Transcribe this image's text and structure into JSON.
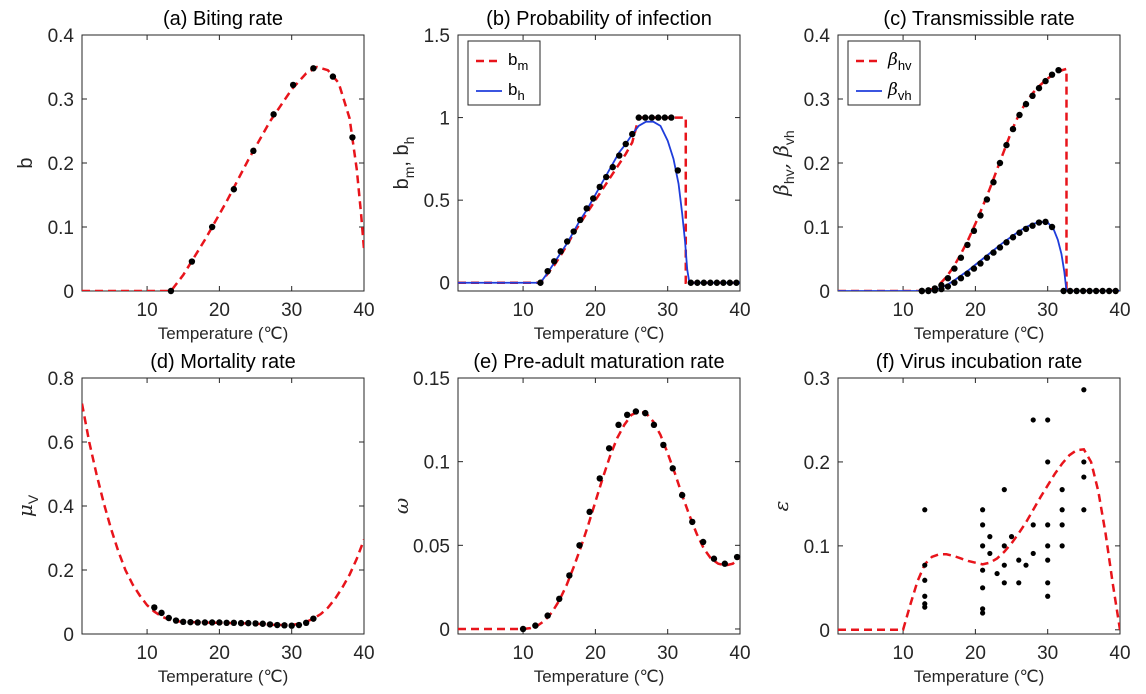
{
  "colors": {
    "red": "#e8141b",
    "blue": "#1f3ddb",
    "points": "#000000",
    "axis": "#262626"
  },
  "chart_data": [
    {
      "id": "a",
      "type": "line",
      "title": "(a) Biting rate",
      "xlabel": "Temperature (℃)",
      "ylabel": "b",
      "xlim": [
        1,
        40
      ],
      "ylim": [
        0,
        0.4
      ],
      "xticks": [
        10,
        20,
        30,
        40
      ],
      "yticks": [
        0,
        0.1,
        0.2,
        0.3,
        0.4
      ],
      "ytick_labels": [
        "0",
        "0.1",
        "0.2",
        "0.3",
        "0.4"
      ],
      "series": [
        {
          "style": "red-dashed",
          "x": [
            1,
            13.3,
            15,
            18,
            21,
            24,
            27,
            30,
            32,
            33.5,
            35,
            36.5,
            38,
            39,
            39.6,
            40
          ],
          "y": [
            0,
            0,
            0.025,
            0.08,
            0.14,
            0.205,
            0.265,
            0.315,
            0.34,
            0.35,
            0.345,
            0.325,
            0.27,
            0.19,
            0.12,
            0.065
          ]
        }
      ],
      "points": {
        "x": [
          13.3,
          16.2,
          19,
          22,
          24.7,
          27.5,
          30.2,
          33,
          35.7,
          38.4
        ],
        "y": [
          0,
          0.046,
          0.1,
          0.159,
          0.219,
          0.276,
          0.322,
          0.348,
          0.335,
          0.24
        ]
      }
    },
    {
      "id": "b",
      "type": "line",
      "title": "(b) Probability of infection",
      "xlabel": "Temperature (℃)",
      "ylabel": "b",
      "ylabel_parts": [
        "b",
        "m",
        ", b",
        "h"
      ],
      "xlim": [
        1,
        40
      ],
      "ylim": [
        -0.05,
        1.5
      ],
      "xticks": [
        10,
        20,
        30,
        40
      ],
      "yticks": [
        0,
        0.5,
        1,
        1.5
      ],
      "ytick_labels": [
        "0",
        "0.5",
        "1",
        "1.5"
      ],
      "legend": [
        {
          "label": "b",
          "sub": "m",
          "style": "red-dashed"
        },
        {
          "label": "b",
          "sub": "h",
          "style": "blue-solid"
        }
      ],
      "series": [
        {
          "name": "b_m",
          "style": "red-dashed",
          "x": [
            1,
            12.4,
            13.4,
            14.3,
            15.2,
            16.1,
            17,
            17.9,
            18.8,
            19.7,
            20.6,
            21.5,
            22.4,
            23.3,
            24.2,
            25.1,
            26,
            32.5,
            32.5,
            40
          ],
          "y": [
            0,
            0,
            0.055,
            0.105,
            0.165,
            0.23,
            0.3,
            0.36,
            0.42,
            0.48,
            0.54,
            0.6,
            0.66,
            0.72,
            0.78,
            0.85,
            1.0,
            1.0,
            0,
            0
          ]
        },
        {
          "name": "b_h",
          "style": "blue-solid",
          "x": [
            1,
            12.4,
            13.4,
            14.3,
            15.2,
            16.1,
            17,
            17.9,
            18.8,
            19.7,
            20.6,
            21.5,
            22.4,
            23.3,
            24.2,
            25.1,
            26,
            27,
            28,
            29,
            30,
            30.8,
            31.5,
            32,
            32.4,
            32.7,
            33,
            40
          ],
          "y": [
            0,
            0,
            0.06,
            0.12,
            0.18,
            0.24,
            0.31,
            0.38,
            0.44,
            0.51,
            0.58,
            0.65,
            0.72,
            0.79,
            0.84,
            0.9,
            0.95,
            0.975,
            0.975,
            0.95,
            0.86,
            0.75,
            0.6,
            0.42,
            0.25,
            0.08,
            0,
            0
          ]
        }
      ],
      "points": {
        "x": [
          12.4,
          13.4,
          14.3,
          15.2,
          16.1,
          17,
          17.9,
          18.8,
          19.7,
          20.6,
          21.5,
          22.4,
          23.3,
          24.2,
          25.1,
          26,
          26.9,
          27.8,
          28.7,
          29.6,
          30.5,
          31.4,
          33.2,
          34.1,
          35,
          35.9,
          36.8,
          37.7,
          38.6,
          39.5
        ],
        "y": [
          0,
          0.07,
          0.13,
          0.19,
          0.25,
          0.31,
          0.38,
          0.45,
          0.51,
          0.58,
          0.64,
          0.7,
          0.77,
          0.84,
          0.9,
          1.0,
          1.0,
          1.0,
          1.0,
          1.0,
          1.0,
          0.68,
          0,
          0,
          0,
          0,
          0,
          0,
          0,
          0
        ]
      }
    },
    {
      "id": "c",
      "type": "line",
      "title": "(c) Transmissible rate",
      "xlabel": "Temperature (℃)",
      "ylabel": "β",
      "ylabel_parts": [
        "β",
        "hv",
        ", β",
        "vh"
      ],
      "xlim": [
        1,
        40
      ],
      "ylim": [
        0,
        0.4
      ],
      "xticks": [
        10,
        20,
        30,
        40
      ],
      "yticks": [
        0,
        0.1,
        0.2,
        0.3,
        0.4
      ],
      "ytick_labels": [
        "0",
        "0.1",
        "0.2",
        "0.3",
        "0.4"
      ],
      "legend": [
        {
          "label": "β",
          "sub": "hv",
          "style": "red-dashed"
        },
        {
          "label": "β",
          "sub": "vh",
          "style": "blue-solid"
        }
      ],
      "series": [
        {
          "name": "beta_hv",
          "style": "red-dashed",
          "x": [
            1,
            13,
            14,
            15,
            16,
            17,
            18,
            19,
            20,
            21,
            22,
            23,
            24,
            25,
            26,
            27,
            28,
            29,
            30,
            31,
            32,
            32.6,
            32.6,
            40
          ],
          "y": [
            0,
            0,
            0.003,
            0.01,
            0.022,
            0.038,
            0.058,
            0.08,
            0.105,
            0.132,
            0.16,
            0.19,
            0.22,
            0.25,
            0.275,
            0.295,
            0.31,
            0.322,
            0.332,
            0.34,
            0.345,
            0.347,
            0,
            0
          ]
        },
        {
          "name": "beta_vh",
          "style": "blue-solid",
          "x": [
            1,
            13,
            14,
            15,
            16,
            17,
            18,
            19,
            20,
            21,
            22,
            23,
            24,
            25,
            26,
            27,
            28,
            29,
            30,
            30.8,
            31.4,
            31.9,
            32.3,
            32.6,
            40
          ],
          "y": [
            0,
            0,
            0.001,
            0.004,
            0.009,
            0.016,
            0.024,
            0.032,
            0.041,
            0.05,
            0.059,
            0.068,
            0.077,
            0.085,
            0.093,
            0.1,
            0.105,
            0.108,
            0.107,
            0.097,
            0.08,
            0.058,
            0.03,
            0,
            0
          ]
        }
      ],
      "points": {
        "x": [
          12.6,
          13.5,
          14.4,
          15.3,
          16.2,
          17.1,
          18,
          18.9,
          19.8,
          20.7,
          21.6,
          22.5,
          23.4,
          24.3,
          25.2,
          26.1,
          27,
          27.9,
          28.8,
          29.7,
          30.6,
          31.5,
          12.6,
          13.5,
          14.4,
          15.3,
          16.2,
          17.1,
          18,
          18.9,
          19.8,
          20.7,
          21.6,
          22.5,
          23.4,
          24.3,
          25.2,
          26.1,
          27,
          27.9,
          28.8,
          29.7,
          30.6,
          32.2,
          33.1,
          34,
          34.9,
          35.8,
          36.7,
          37.6,
          38.5,
          39.4
        ],
        "y": [
          0,
          0.001,
          0.004,
          0.009,
          0.02,
          0.035,
          0.052,
          0.072,
          0.094,
          0.118,
          0.143,
          0.17,
          0.2,
          0.228,
          0.253,
          0.275,
          0.292,
          0.305,
          0.317,
          0.328,
          0.338,
          0.345,
          0,
          0,
          0.001,
          0.003,
          0.007,
          0.013,
          0.02,
          0.027,
          0.035,
          0.043,
          0.052,
          0.06,
          0.068,
          0.076,
          0.084,
          0.091,
          0.097,
          0.102,
          0.107,
          0.108,
          0.1,
          0,
          0,
          0,
          0,
          0,
          0,
          0,
          0,
          0
        ]
      }
    },
    {
      "id": "d",
      "type": "line",
      "title": "(d) Mortality rate",
      "xlabel": "Temperature (℃)",
      "ylabel": "μ",
      "ylabel_parts": [
        "μ",
        "V",
        "",
        ""
      ],
      "xlim": [
        1,
        40
      ],
      "ylim": [
        0,
        0.8
      ],
      "xticks": [
        10,
        20,
        30,
        40
      ],
      "yticks": [
        0,
        0.2,
        0.4,
        0.6,
        0.8
      ],
      "ytick_labels": [
        "0",
        "0.2",
        "0.4",
        "0.6",
        "0.8"
      ],
      "series": [
        {
          "style": "red-dashed",
          "x": [
            1,
            2,
            3,
            4,
            5,
            6,
            7,
            8,
            9,
            10,
            11,
            12,
            13,
            14,
            16,
            18,
            20,
            22,
            24,
            26,
            28,
            30,
            31,
            32,
            33,
            34,
            35,
            36,
            37,
            38,
            39,
            40
          ],
          "y": [
            0.72,
            0.6,
            0.5,
            0.41,
            0.33,
            0.26,
            0.2,
            0.155,
            0.12,
            0.09,
            0.07,
            0.055,
            0.045,
            0.04,
            0.037,
            0.036,
            0.035,
            0.034,
            0.033,
            0.031,
            0.028,
            0.028,
            0.032,
            0.038,
            0.048,
            0.062,
            0.082,
            0.11,
            0.145,
            0.185,
            0.235,
            0.295
          ]
        }
      ],
      "points": {
        "x": [
          11,
          12,
          13,
          14,
          15,
          16,
          17,
          18,
          19,
          20,
          21,
          22,
          23,
          24,
          25,
          26,
          27,
          28,
          29,
          30,
          31,
          32,
          33
        ],
        "y": [
          0.083,
          0.066,
          0.05,
          0.042,
          0.038,
          0.037,
          0.036,
          0.036,
          0.036,
          0.036,
          0.035,
          0.035,
          0.034,
          0.034,
          0.033,
          0.032,
          0.03,
          0.028,
          0.027,
          0.026,
          0.028,
          0.035,
          0.048
        ]
      }
    },
    {
      "id": "e",
      "type": "line",
      "title": "(e) Pre-adult maturation rate",
      "xlabel": "Temperature (℃)",
      "ylabel": "ω",
      "xlim": [
        1,
        40
      ],
      "ylim": [
        -0.003,
        0.15
      ],
      "xticks": [
        10,
        20,
        30,
        40
      ],
      "yticks": [
        0,
        0.05,
        0.1,
        0.15
      ],
      "ytick_labels": [
        "0",
        "0.05",
        "0.1",
        "0.15"
      ],
      "series": [
        {
          "style": "red-dashed",
          "x": [
            1,
            10,
            11,
            12,
            13,
            14,
            15,
            16,
            17,
            18,
            19,
            20,
            21,
            22,
            23,
            24,
            25,
            26,
            27,
            28,
            29,
            30,
            31,
            32,
            33,
            34,
            35,
            36,
            37,
            38,
            39,
            40
          ],
          "y": [
            0,
            0,
            0.0005,
            0.002,
            0.005,
            0.01,
            0.017,
            0.026,
            0.037,
            0.049,
            0.062,
            0.076,
            0.09,
            0.103,
            0.114,
            0.122,
            0.128,
            0.13,
            0.129,
            0.124,
            0.116,
            0.105,
            0.093,
            0.08,
            0.068,
            0.057,
            0.048,
            0.042,
            0.039,
            0.038,
            0.039,
            0.043
          ]
        }
      ],
      "points": {
        "x": [
          10,
          11.7,
          13.4,
          15,
          16.4,
          17.8,
          19.2,
          20.6,
          21.9,
          23.2,
          24.4,
          25.6,
          26.9,
          28.1,
          29.4,
          30.7,
          32,
          33.4,
          34.9,
          36.4,
          37.9,
          39.6
        ],
        "y": [
          0,
          0.002,
          0.008,
          0.018,
          0.032,
          0.05,
          0.07,
          0.09,
          0.108,
          0.122,
          0.128,
          0.13,
          0.129,
          0.122,
          0.11,
          0.096,
          0.08,
          0.064,
          0.052,
          0.042,
          0.039,
          0.043
        ]
      }
    },
    {
      "id": "f",
      "type": "scatter",
      "title": "(f) Virus incubation rate",
      "xlabel": "Temperature (℃)",
      "ylabel": "ε",
      "xlim": [
        1,
        40
      ],
      "ylim": [
        -0.005,
        0.3
      ],
      "xticks": [
        10,
        20,
        30,
        40
      ],
      "yticks": [
        0,
        0.1,
        0.2,
        0.3
      ],
      "ytick_labels": [
        "0",
        "0.1",
        "0.2",
        "0.3"
      ],
      "series": [
        {
          "style": "red-dashed",
          "x": [
            1,
            10,
            11,
            12,
            13,
            14,
            15,
            16,
            17,
            18,
            19,
            20,
            21,
            22,
            23,
            24,
            25,
            26,
            27,
            28,
            29,
            30,
            31,
            32,
            33,
            34,
            35,
            36,
            37,
            38,
            39,
            40
          ],
          "y": [
            0,
            0,
            0.03,
            0.058,
            0.078,
            0.087,
            0.09,
            0.09,
            0.088,
            0.085,
            0.082,
            0.08,
            0.078,
            0.08,
            0.085,
            0.093,
            0.103,
            0.115,
            0.128,
            0.143,
            0.158,
            0.172,
            0.186,
            0.198,
            0.208,
            0.214,
            0.215,
            0.2,
            0.165,
            0.115,
            0.055,
            0
          ]
        }
      ],
      "points": {
        "x": [
          13,
          13,
          13,
          13,
          13,
          13,
          21,
          21,
          21,
          21,
          21,
          21,
          21,
          22,
          22,
          23,
          24,
          24,
          24,
          24,
          25,
          26,
          26,
          27,
          28,
          28,
          28,
          30,
          30,
          30,
          30,
          30,
          30,
          30,
          32,
          32,
          32,
          32,
          35,
          35,
          35,
          35
        ],
        "y": [
          0.143,
          0.077,
          0.059,
          0.04,
          0.031,
          0.027,
          0.143,
          0.125,
          0.1,
          0.071,
          0.05,
          0.025,
          0.02,
          0.111,
          0.091,
          0.067,
          0.167,
          0.1,
          0.077,
          0.056,
          0.111,
          0.083,
          0.056,
          0.077,
          0.25,
          0.125,
          0.091,
          0.25,
          0.2,
          0.125,
          0.1,
          0.083,
          0.056,
          0.04,
          0.167,
          0.143,
          0.125,
          0.1,
          0.286,
          0.2,
          0.182,
          0.143
        ]
      }
    }
  ]
}
